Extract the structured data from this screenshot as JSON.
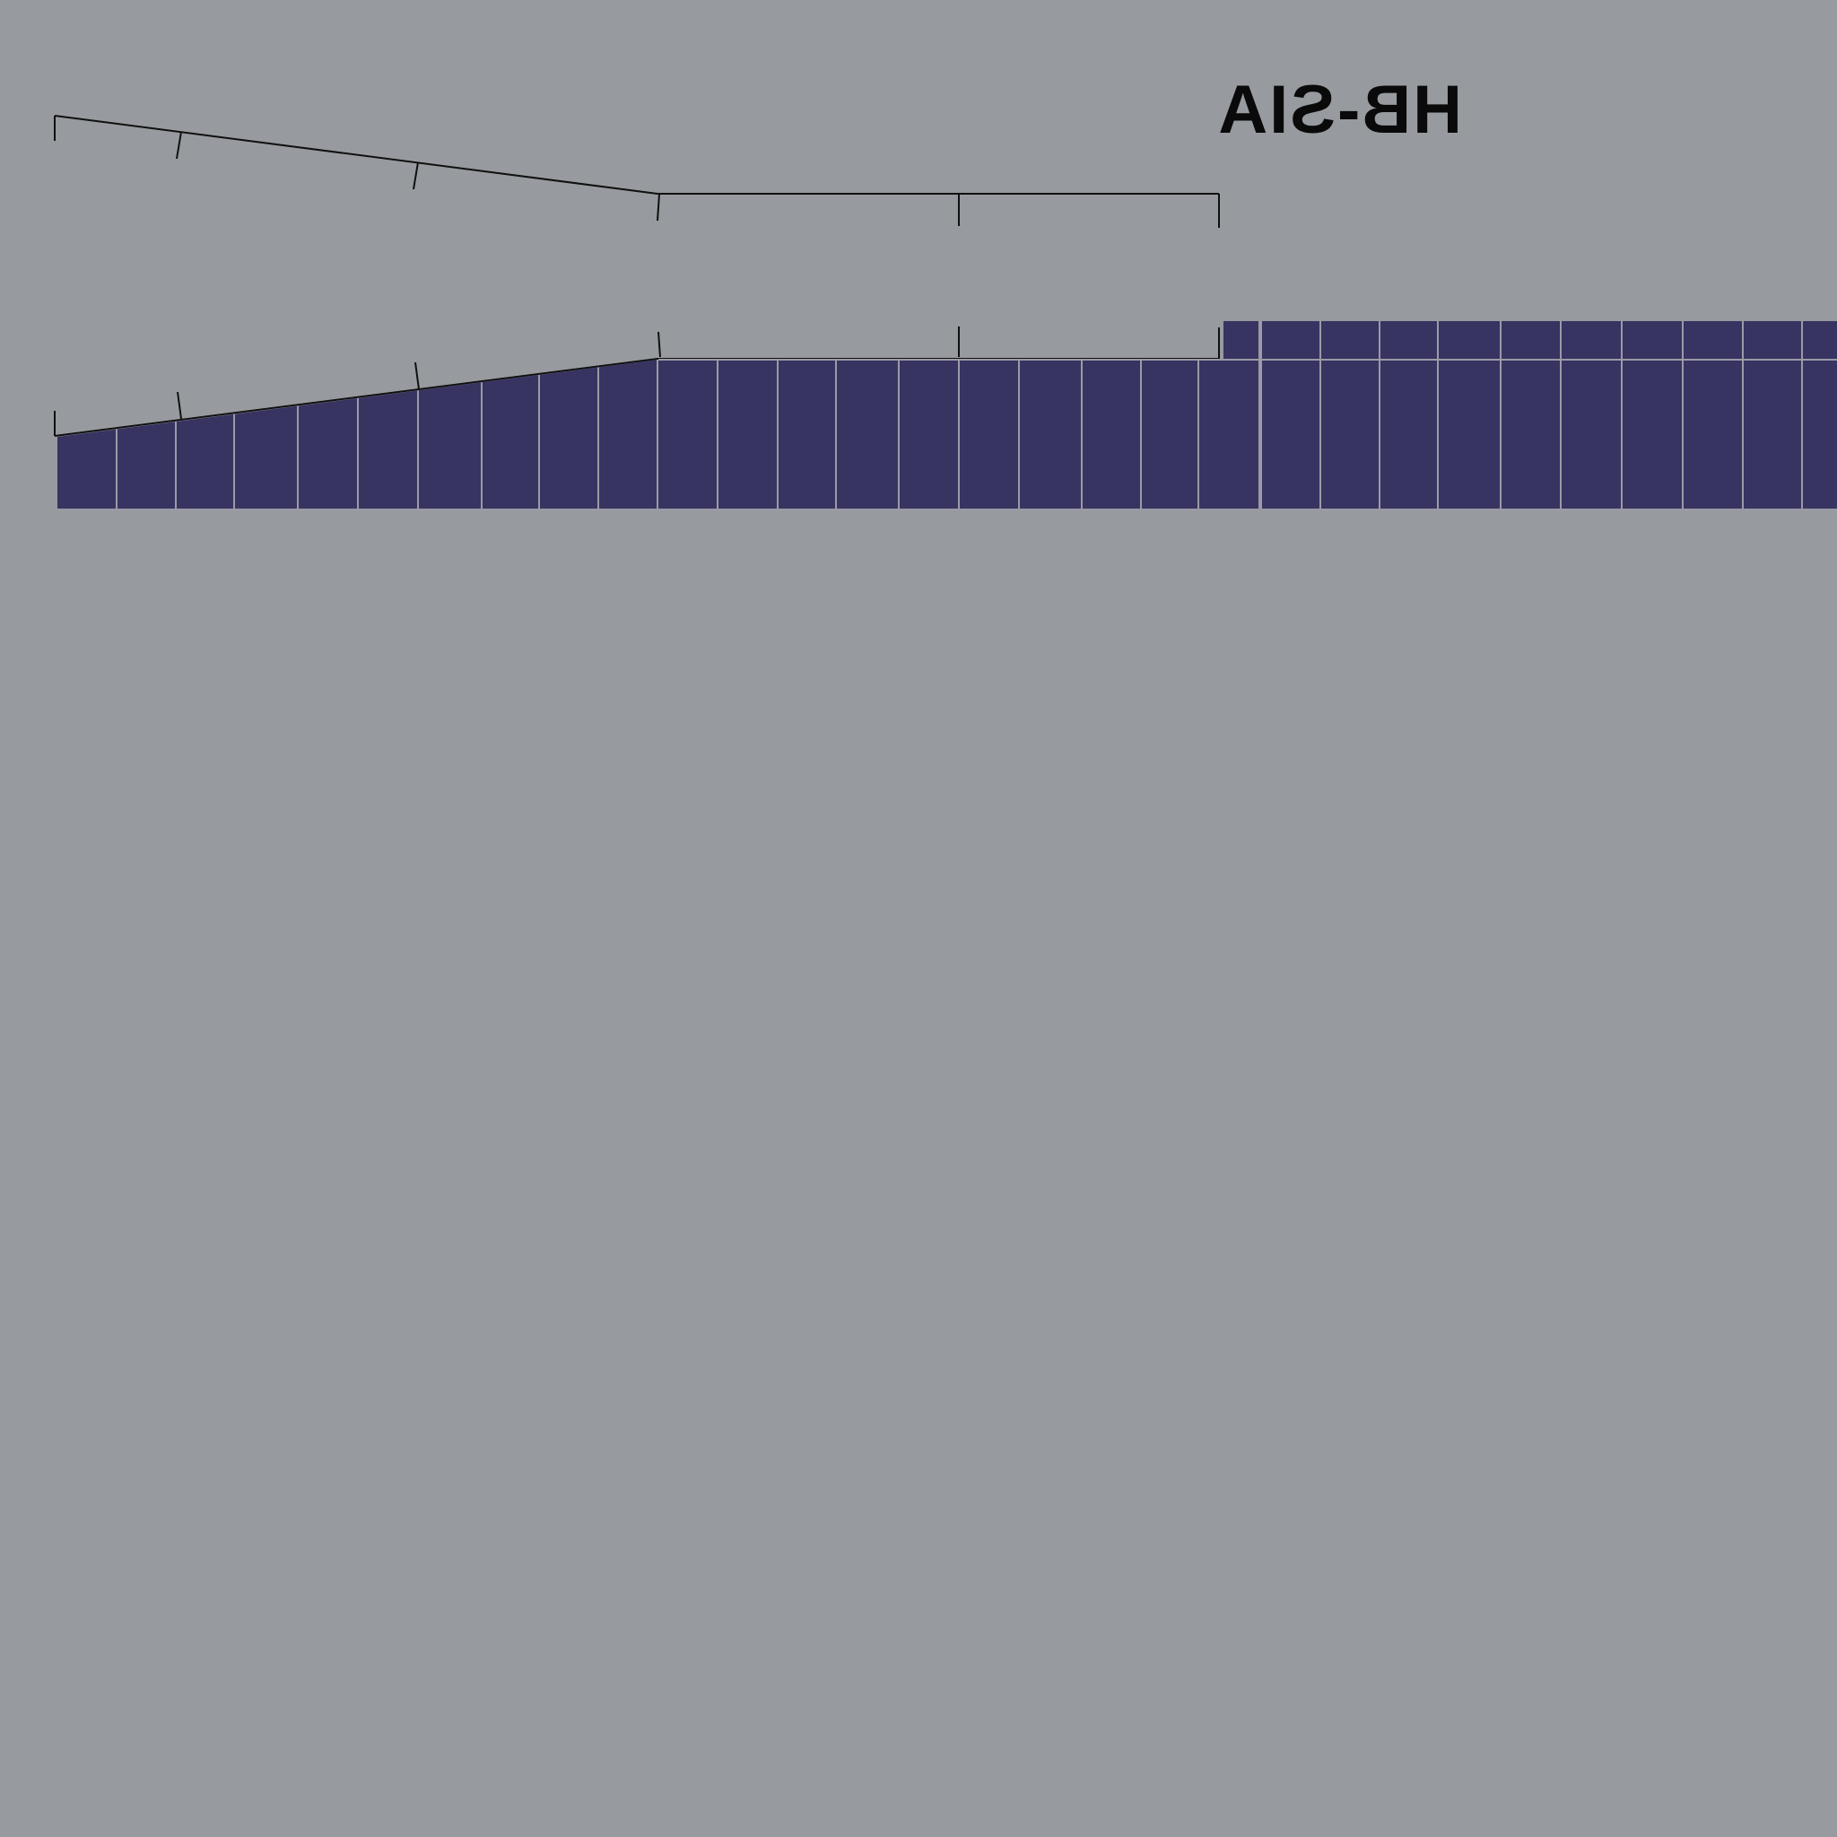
{
  "registration": {
    "text": "HB-SIA",
    "mirrored": true
  },
  "colors": {
    "background": "#979a9e",
    "panel": "#373461",
    "panel_lines": "#9b9aa6",
    "outline": "#101010",
    "text": "#0a0a0a"
  },
  "panel_strip": {
    "segments": 3,
    "cells_per_segment": [
      10,
      10,
      10
    ]
  }
}
